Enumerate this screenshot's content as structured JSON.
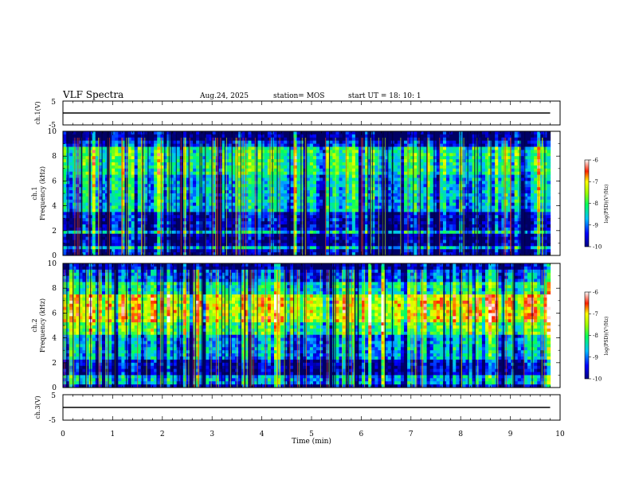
{
  "header": {
    "title": "VLF Spectra",
    "date": "Aug.24, 2025",
    "station": "station= MOS",
    "start_ut": "start  UT  =   18: 10: 1"
  },
  "chart_data": [
    {
      "type": "line",
      "name": "ch1-waveform",
      "ylabel": "ch.1(V)",
      "ylim": [
        -5,
        5
      ],
      "ytick_labels": [
        "5",
        "-5"
      ],
      "description_values": {
        "baseline": -0.5
      },
      "x_range_min": [
        0,
        9.8
      ]
    },
    {
      "type": "heatmap",
      "name": "ch1-spectrogram",
      "ylabel_lines": [
        "ch.1",
        "Frequency (kHz)"
      ],
      "ylim": [
        0,
        10
      ],
      "yticks": [
        "0",
        "2",
        "4",
        "6",
        "8",
        "10"
      ],
      "x_range_min": [
        0,
        9.8
      ],
      "colorbar": {
        "label": "log(PSD)(V²/Hz)",
        "ticks": [
          "-6",
          "-7",
          "-8",
          "-9",
          "-10"
        ],
        "range": [
          -10,
          -6
        ]
      }
    },
    {
      "type": "heatmap",
      "name": "ch2-spectrogram",
      "ylabel_lines": [
        "ch.2",
        "Frequency (kHz)"
      ],
      "ylim": [
        0,
        10
      ],
      "yticks": [
        "0",
        "2",
        "4",
        "6",
        "8",
        "10"
      ],
      "x_range_min": [
        0,
        9.8
      ],
      "colorbar": {
        "label": "log(PSD)(V²/Hz)",
        "ticks": [
          "-6",
          "-7",
          "-8",
          "-9",
          "-10"
        ],
        "range": [
          -10,
          -6
        ]
      }
    },
    {
      "type": "line",
      "name": "ch3-waveform",
      "ylabel": "ch.3(V)",
      "ylim": [
        -5,
        5
      ],
      "ytick_labels": [
        "5",
        "-5"
      ],
      "description_values": {
        "baseline": -0.5
      },
      "x_range_min": [
        0,
        9.8
      ]
    }
  ],
  "x_axis": {
    "label": "Time  (min)",
    "xlim": [
      0,
      10
    ],
    "ticks": [
      "0",
      "1",
      "2",
      "3",
      "4",
      "5",
      "6",
      "7",
      "8",
      "9",
      "10"
    ]
  }
}
